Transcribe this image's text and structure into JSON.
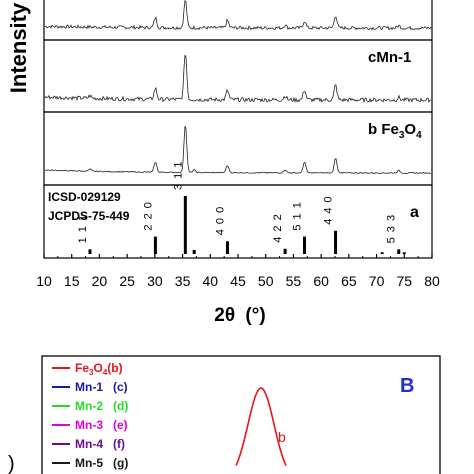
{
  "chart_data": [
    {
      "type": "line",
      "xlabel_main": "2θ (°)",
      "xlabel_symbol": "2θ",
      "xlabel_unit": "(°)",
      "ylabel": "Intensity",
      "xlim": [
        10,
        80
      ],
      "xticks": [
        10,
        15,
        20,
        25,
        30,
        35,
        40,
        45,
        50,
        55,
        60,
        65,
        70,
        75,
        80
      ],
      "grid": false,
      "panels": [
        {
          "label_prefix": "",
          "label": "",
          "peaks": [
            [
              30.1,
              0.35
            ],
            [
              35.5,
              1.0
            ],
            [
              43.1,
              0.25
            ],
            [
              53.5,
              0.1
            ],
            [
              57.0,
              0.25
            ],
            [
              62.6,
              0.45
            ],
            [
              74.0,
              0.08
            ]
          ],
          "noise": 0.12
        },
        {
          "label_prefix": "c",
          "label": "Mn-1",
          "peaks": [
            [
              18.3,
              0.05
            ],
            [
              30.1,
              0.22
            ],
            [
              35.5,
              0.95
            ],
            [
              43.1,
              0.18
            ],
            [
              53.5,
              0.08
            ],
            [
              57.0,
              0.2
            ],
            [
              62.6,
              0.3
            ],
            [
              74.0,
              0.05
            ]
          ],
          "noise": 0.08
        },
        {
          "label_prefix": "b",
          "label": "Fe3O4",
          "label_parts": [
            "Fe",
            "3",
            "O",
            "4"
          ],
          "peaks": [
            [
              18.3,
              0.04
            ],
            [
              30.1,
              0.2
            ],
            [
              35.5,
              0.95
            ],
            [
              37.1,
              0.05
            ],
            [
              43.1,
              0.14
            ],
            [
              53.5,
              0.06
            ],
            [
              57.0,
              0.22
            ],
            [
              62.6,
              0.3
            ],
            [
              74.0,
              0.05
            ]
          ],
          "noise": 0.02
        }
      ],
      "reference": {
        "title1": "ICSD-029129",
        "title2": "JCPDS-75-449",
        "letter": "a",
        "sticks": [
          {
            "x": 18.3,
            "h": 0.08,
            "label": "1 1 1"
          },
          {
            "x": 30.1,
            "h": 0.3,
            "label": "2 2 0"
          },
          {
            "x": 35.5,
            "h": 1.0,
            "label": "3 1 1"
          },
          {
            "x": 37.1,
            "h": 0.07,
            "label": ""
          },
          {
            "x": 43.1,
            "h": 0.22,
            "label": "4 0 0"
          },
          {
            "x": 53.5,
            "h": 0.09,
            "label": "4 2 2"
          },
          {
            "x": 57.0,
            "h": 0.3,
            "label": "5 1 1"
          },
          {
            "x": 62.6,
            "h": 0.4,
            "label": "4 4 0"
          },
          {
            "x": 71.0,
            "h": 0.03,
            "label": ""
          },
          {
            "x": 74.0,
            "h": 0.08,
            "label": "5 3 3"
          },
          {
            "x": 75.0,
            "h": 0.03,
            "label": ""
          }
        ]
      }
    },
    {
      "type": "line",
      "panel_letter": "B",
      "legend": [
        {
          "label": "Fe3O4(b)",
          "parts": [
            "Fe",
            "3",
            "O",
            "4",
            "(b)"
          ],
          "color": "#e8141c"
        },
        {
          "label": "Mn-1   (c)",
          "color": "#1a1aa6"
        },
        {
          "label": "Mn-2   (d)",
          "color": "#22dd22"
        },
        {
          "label": "Mn-3   (e)",
          "color": "#e000e0"
        },
        {
          "label": "Mn-4   (f)",
          "color": "#6a0d8a"
        },
        {
          "label": "Mn-5   (g)",
          "color": "#1a1a1a"
        }
      ],
      "curve_label": "b",
      "curve_color": "#e8141c",
      "ylabel_fragment": ")"
    }
  ]
}
